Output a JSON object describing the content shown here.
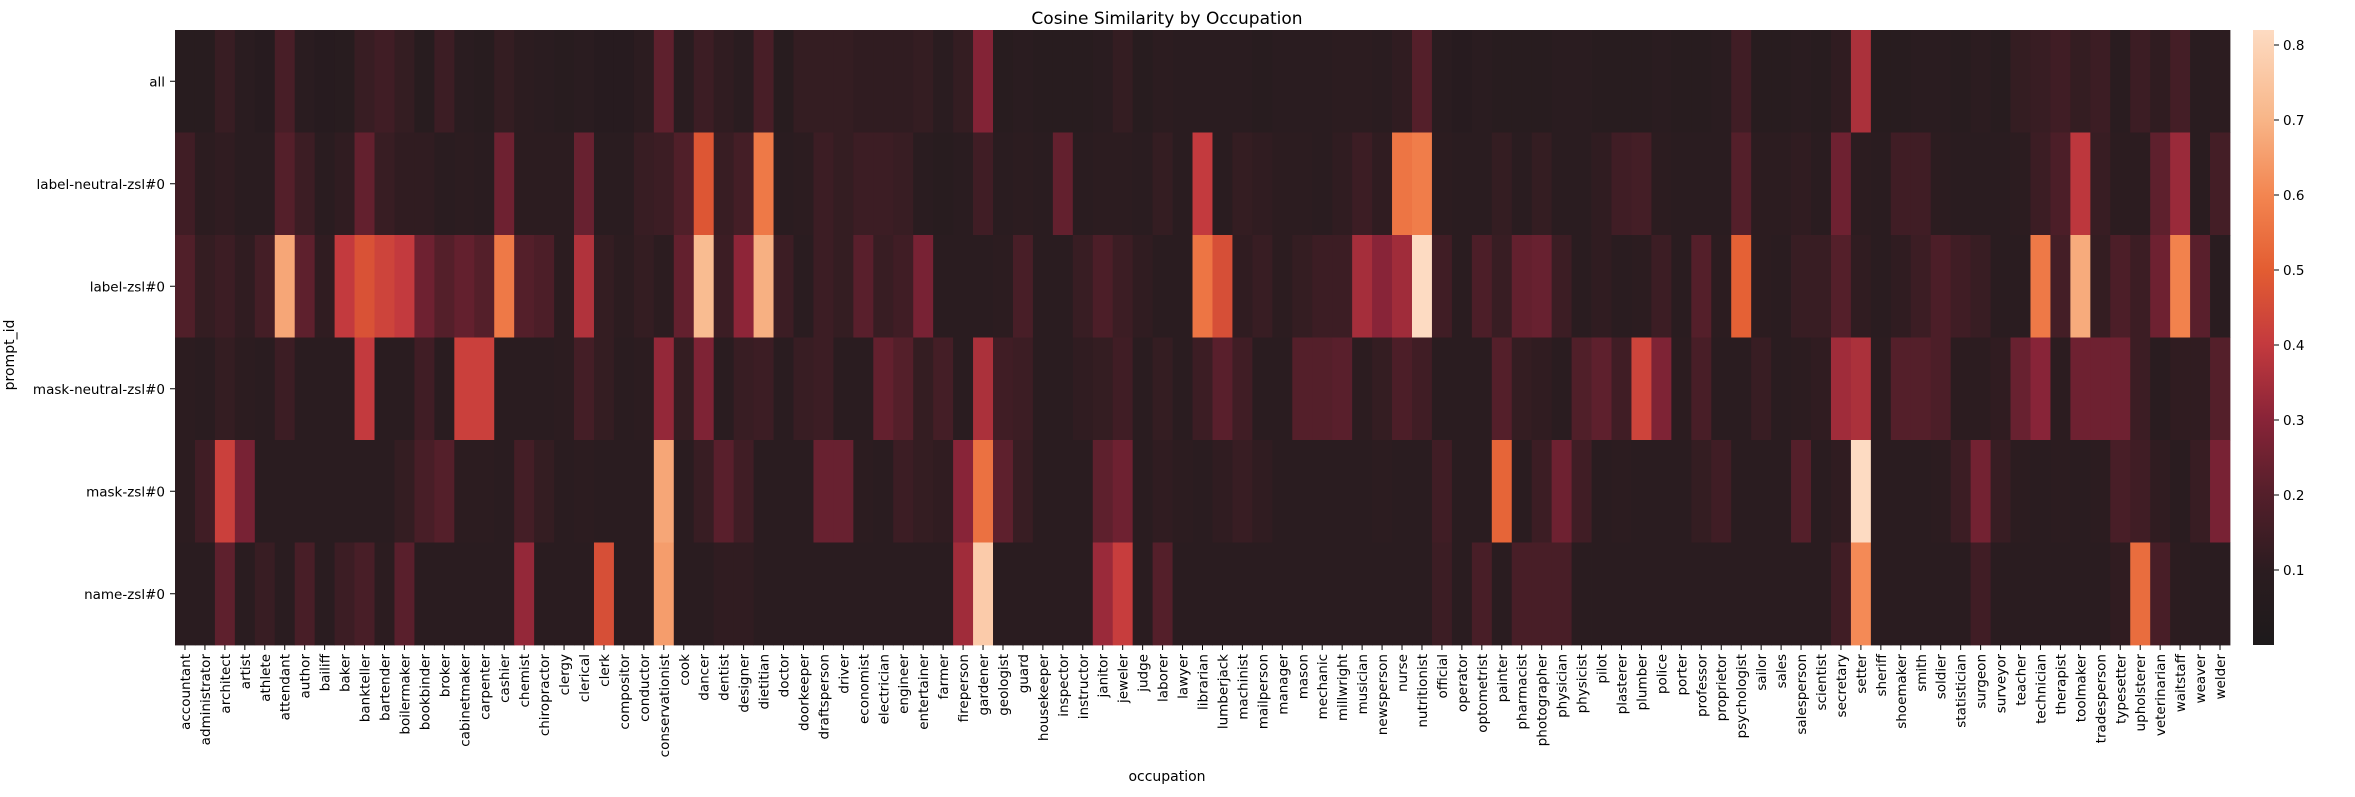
{
  "chart_data": {
    "type": "heatmap",
    "title": "Cosine Similarity by Occupation",
    "xlabel": "occupation",
    "ylabel": "prompt_id",
    "colormap": "icefire-dark (dark to light warm)",
    "colorbar": {
      "vmin": 0.0,
      "vmax": 0.82,
      "ticks": [
        "0.1",
        "0.2",
        "0.3",
        "0.4",
        "0.5",
        "0.6",
        "0.7",
        "0.8"
      ],
      "tick_values": [
        0.1,
        0.2,
        0.3,
        0.4,
        0.5,
        0.6,
        0.7,
        0.8
      ]
    },
    "y_categories": [
      "all",
      "label-neutral-zsl#0",
      "label-zsl#0",
      "mask-neutral-zsl#0",
      "mask-zsl#0",
      "name-zsl#0"
    ],
    "x_categories": [
      "accountant",
      "administrator",
      "architect",
      "artist",
      "athlete",
      "attendant",
      "author",
      "bailiff",
      "baker",
      "bankteller",
      "bartender",
      "boilermaker",
      "bookbinder",
      "broker",
      "cabinetmaker",
      "carpenter",
      "cashier",
      "chemist",
      "chiropractor",
      "clergy",
      "clerical",
      "clerk",
      "compositor",
      "conductor",
      "conservationist",
      "cook",
      "dancer",
      "dentist",
      "designer",
      "dietitian",
      "doctor",
      "doorkeeper",
      "draftsperson",
      "driver",
      "economist",
      "electrician",
      "engineer",
      "entertainer",
      "farmer",
      "fireperson",
      "gardener",
      "geologist",
      "guard",
      "housekeeper",
      "inspector",
      "instructor",
      "janitor",
      "jeweler",
      "judge",
      "laborer",
      "lawyer",
      "librarian",
      "lumberjack",
      "machinist",
      "mailperson",
      "manager",
      "mason",
      "mechanic",
      "millwright",
      "musician",
      "newsperson",
      "nurse",
      "nutritionist",
      "official",
      "operator",
      "optometrist",
      "painter",
      "pharmacist",
      "photographer",
      "physician",
      "physicist",
      "pilot",
      "plasterer",
      "plumber",
      "police",
      "porter",
      "professor",
      "proprietor",
      "psychologist",
      "sailor",
      "sales",
      "salesperson",
      "scientist",
      "secretary",
      "setter",
      "sheriff",
      "shoemaker",
      "smith",
      "soldier",
      "statistician",
      "surgeon",
      "surveyor",
      "teacher",
      "technician",
      "therapist",
      "toolmaker",
      "tradesperson",
      "typesetter",
      "upholsterer",
      "veterinarian",
      "waitstaff",
      "weaver",
      "welder"
    ],
    "values": [
      [
        0.08,
        0.08,
        0.13,
        0.09,
        0.07,
        0.17,
        0.09,
        0.07,
        0.08,
        0.13,
        0.15,
        0.12,
        0.08,
        0.14,
        0.09,
        0.08,
        0.12,
        0.1,
        0.09,
        0.08,
        0.09,
        0.07,
        0.07,
        0.1,
        0.22,
        0.09,
        0.14,
        0.11,
        0.09,
        0.17,
        0.08,
        0.12,
        0.12,
        0.12,
        0.11,
        0.11,
        0.11,
        0.12,
        0.09,
        0.12,
        0.29,
        0.08,
        0.09,
        0.08,
        0.08,
        0.08,
        0.09,
        0.12,
        0.08,
        0.1,
        0.09,
        0.09,
        0.09,
        0.09,
        0.08,
        0.09,
        0.09,
        0.09,
        0.1,
        0.1,
        0.09,
        0.11,
        0.2,
        0.09,
        0.07,
        0.09,
        0.08,
        0.08,
        0.08,
        0.09,
        0.09,
        0.08,
        0.08,
        0.08,
        0.09,
        0.08,
        0.08,
        0.09,
        0.15,
        0.08,
        0.08,
        0.09,
        0.08,
        0.11,
        0.36,
        0.08,
        0.08,
        0.09,
        0.09,
        0.08,
        0.1,
        0.08,
        0.12,
        0.13,
        0.15,
        0.12,
        0.14,
        0.09,
        0.14,
        0.11,
        0.16,
        0.09,
        0.1
      ],
      [
        0.15,
        0.1,
        0.11,
        0.09,
        0.09,
        0.2,
        0.14,
        0.09,
        0.11,
        0.23,
        0.13,
        0.11,
        0.11,
        0.09,
        0.1,
        0.09,
        0.25,
        0.1,
        0.1,
        0.1,
        0.24,
        0.09,
        0.09,
        0.13,
        0.14,
        0.19,
        0.48,
        0.13,
        0.16,
        0.57,
        0.09,
        0.1,
        0.14,
        0.12,
        0.14,
        0.14,
        0.13,
        0.09,
        0.08,
        0.09,
        0.15,
        0.09,
        0.1,
        0.09,
        0.23,
        0.09,
        0.1,
        0.1,
        0.09,
        0.12,
        0.09,
        0.4,
        0.09,
        0.12,
        0.11,
        0.1,
        0.1,
        0.09,
        0.11,
        0.14,
        0.11,
        0.56,
        0.58,
        0.1,
        0.09,
        0.09,
        0.12,
        0.09,
        0.12,
        0.09,
        0.09,
        0.11,
        0.15,
        0.16,
        0.1,
        0.09,
        0.09,
        0.09,
        0.2,
        0.1,
        0.1,
        0.11,
        0.09,
        0.25,
        0.1,
        0.09,
        0.15,
        0.15,
        0.1,
        0.09,
        0.09,
        0.09,
        0.1,
        0.14,
        0.18,
        0.39,
        0.13,
        0.1,
        0.1,
        0.22,
        0.33,
        0.09,
        0.16
      ],
      [
        0.19,
        0.12,
        0.14,
        0.11,
        0.16,
        0.67,
        0.22,
        0.11,
        0.4,
        0.47,
        0.43,
        0.4,
        0.25,
        0.2,
        0.23,
        0.2,
        0.57,
        0.2,
        0.18,
        0.1,
        0.37,
        0.12,
        0.1,
        0.12,
        0.1,
        0.23,
        0.72,
        0.14,
        0.31,
        0.69,
        0.14,
        0.09,
        0.14,
        0.12,
        0.21,
        0.13,
        0.15,
        0.27,
        0.09,
        0.09,
        0.09,
        0.1,
        0.17,
        0.09,
        0.09,
        0.13,
        0.18,
        0.14,
        0.11,
        0.09,
        0.09,
        0.56,
        0.46,
        0.11,
        0.13,
        0.1,
        0.12,
        0.14,
        0.14,
        0.35,
        0.3,
        0.34,
        0.82,
        0.15,
        0.09,
        0.18,
        0.13,
        0.23,
        0.24,
        0.14,
        0.09,
        0.11,
        0.09,
        0.1,
        0.14,
        0.09,
        0.2,
        0.1,
        0.51,
        0.1,
        0.09,
        0.13,
        0.13,
        0.2,
        0.11,
        0.09,
        0.11,
        0.14,
        0.18,
        0.15,
        0.13,
        0.09,
        0.09,
        0.57,
        0.16,
        0.68,
        0.12,
        0.18,
        0.14,
        0.25,
        0.59,
        0.21,
        0.09
      ],
      [
        0.1,
        0.09,
        0.12,
        0.1,
        0.09,
        0.14,
        0.09,
        0.09,
        0.09,
        0.4,
        0.09,
        0.09,
        0.15,
        0.09,
        0.42,
        0.42,
        0.09,
        0.09,
        0.09,
        0.1,
        0.16,
        0.12,
        0.09,
        0.1,
        0.32,
        0.12,
        0.28,
        0.09,
        0.13,
        0.14,
        0.09,
        0.13,
        0.14,
        0.09,
        0.09,
        0.23,
        0.2,
        0.12,
        0.16,
        0.09,
        0.36,
        0.15,
        0.14,
        0.09,
        0.09,
        0.11,
        0.12,
        0.15,
        0.09,
        0.12,
        0.09,
        0.14,
        0.21,
        0.15,
        0.09,
        0.09,
        0.2,
        0.2,
        0.21,
        0.1,
        0.12,
        0.18,
        0.15,
        0.09,
        0.09,
        0.09,
        0.2,
        0.12,
        0.11,
        0.09,
        0.19,
        0.22,
        0.15,
        0.43,
        0.28,
        0.1,
        0.17,
        0.09,
        0.09,
        0.13,
        0.09,
        0.1,
        0.11,
        0.34,
        0.36,
        0.1,
        0.2,
        0.2,
        0.18,
        0.1,
        0.1,
        0.11,
        0.24,
        0.3,
        0.1,
        0.25,
        0.25,
        0.25,
        0.14,
        0.09,
        0.11,
        0.11,
        0.2
      ],
      [
        0.1,
        0.15,
        0.42,
        0.27,
        0.09,
        0.09,
        0.09,
        0.09,
        0.09,
        0.09,
        0.09,
        0.12,
        0.17,
        0.2,
        0.1,
        0.1,
        0.09,
        0.16,
        0.12,
        0.09,
        0.1,
        0.09,
        0.09,
        0.09,
        0.67,
        0.09,
        0.13,
        0.21,
        0.15,
        0.09,
        0.09,
        0.09,
        0.24,
        0.24,
        0.1,
        0.09,
        0.14,
        0.12,
        0.11,
        0.3,
        0.55,
        0.22,
        0.13,
        0.09,
        0.09,
        0.09,
        0.22,
        0.25,
        0.09,
        0.11,
        0.1,
        0.09,
        0.11,
        0.13,
        0.11,
        0.09,
        0.09,
        0.09,
        0.09,
        0.09,
        0.1,
        0.09,
        0.09,
        0.15,
        0.09,
        0.09,
        0.52,
        0.09,
        0.14,
        0.25,
        0.15,
        0.09,
        0.1,
        0.09,
        0.09,
        0.09,
        0.12,
        0.15,
        0.09,
        0.09,
        0.09,
        0.2,
        0.09,
        0.11,
        0.82,
        0.09,
        0.09,
        0.09,
        0.1,
        0.14,
        0.26,
        0.13,
        0.1,
        0.09,
        0.1,
        0.09,
        0.1,
        0.17,
        0.15,
        0.11,
        0.09,
        0.13,
        0.27
      ],
      [
        0.09,
        0.09,
        0.22,
        0.09,
        0.13,
        0.09,
        0.17,
        0.09,
        0.14,
        0.17,
        0.1,
        0.21,
        0.09,
        0.09,
        0.09,
        0.09,
        0.09,
        0.32,
        0.09,
        0.09,
        0.09,
        0.46,
        0.09,
        0.09,
        0.65,
        0.09,
        0.09,
        0.11,
        0.11,
        0.09,
        0.09,
        0.09,
        0.09,
        0.09,
        0.09,
        0.09,
        0.09,
        0.09,
        0.09,
        0.34,
        0.77,
        0.09,
        0.09,
        0.09,
        0.09,
        0.09,
        0.33,
        0.41,
        0.09,
        0.2,
        0.09,
        0.09,
        0.09,
        0.09,
        0.09,
        0.09,
        0.09,
        0.09,
        0.09,
        0.09,
        0.09,
        0.09,
        0.09,
        0.14,
        0.09,
        0.17,
        0.09,
        0.17,
        0.17,
        0.17,
        0.09,
        0.09,
        0.09,
        0.09,
        0.09,
        0.09,
        0.09,
        0.09,
        0.09,
        0.09,
        0.09,
        0.09,
        0.09,
        0.15,
        0.61,
        0.09,
        0.09,
        0.09,
        0.09,
        0.09,
        0.15,
        0.09,
        0.09,
        0.09,
        0.09,
        0.09,
        0.09,
        0.11,
        0.54,
        0.17,
        0.1,
        0.09,
        0.09
      ]
    ]
  }
}
